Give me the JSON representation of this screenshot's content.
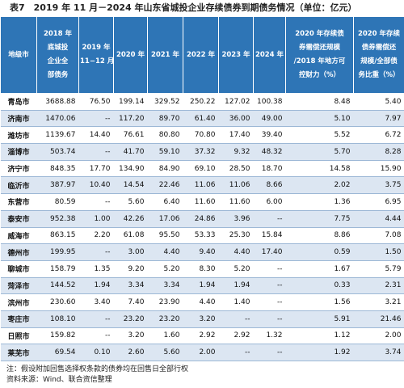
{
  "title": "表7　2019 年 11 月－2024 年山东省城投企业存续债券到期债务情况（单位：亿元）",
  "table": {
    "header": [
      [
        "地级市"
      ],
      [
        "2018 年",
        "底城投",
        "企业全",
        "部债务"
      ],
      [
        "2019 年",
        "11−12 月"
      ],
      [
        "2020 年"
      ],
      [
        "2021 年"
      ],
      [
        "2022 年"
      ],
      [
        "2023 年"
      ],
      [
        "2024 年"
      ],
      [
        "2020 年存续债",
        "券需偿还规模",
        "/2018 年地方可",
        "控财力（%）"
      ],
      [
        "2020 年存续",
        "债券需偿还",
        "规模/全部债",
        "务比重（%）"
      ]
    ],
    "rows": [
      [
        "青岛市",
        "3688.88",
        "76.50",
        "199.14",
        "329.52",
        "250.22",
        "127.02",
        "100.38",
        "8.48",
        "5.40"
      ],
      [
        "济南市",
        "1470.06",
        "--",
        "117.20",
        "89.70",
        "61.40",
        "36.00",
        "49.00",
        "5.10",
        "7.97"
      ],
      [
        "潍坊市",
        "1139.67",
        "14.40",
        "76.61",
        "80.80",
        "70.80",
        "17.40",
        "39.40",
        "5.52",
        "6.72"
      ],
      [
        "淄博市",
        "503.74",
        "--",
        "41.70",
        "59.10",
        "37.32",
        "9.32",
        "48.32",
        "5.70",
        "8.28"
      ],
      [
        "济宁市",
        "848.35",
        "17.70",
        "134.90",
        "84.90",
        "69.10",
        "28.50",
        "18.70",
        "14.58",
        "15.90"
      ],
      [
        "临沂市",
        "387.97",
        "10.40",
        "14.54",
        "22.46",
        "11.06",
        "11.06",
        "8.66",
        "2.02",
        "3.75"
      ],
      [
        "东营市",
        "80.59",
        "--",
        "5.60",
        "6.40",
        "11.60",
        "11.60",
        "6.00",
        "1.36",
        "6.95"
      ],
      [
        "泰安市",
        "952.38",
        "1.00",
        "42.26",
        "17.06",
        "24.86",
        "3.96",
        "--",
        "7.75",
        "4.44"
      ],
      [
        "威海市",
        "863.15",
        "2.20",
        "61.08",
        "95.50",
        "53.33",
        "25.30",
        "15.84",
        "8.86",
        "7.08"
      ],
      [
        "德州市",
        "199.95",
        "--",
        "3.00",
        "4.40",
        "9.40",
        "4.40",
        "17.40",
        "0.59",
        "1.50"
      ],
      [
        "聊城市",
        "158.79",
        "1.35",
        "9.20",
        "5.20",
        "8.30",
        "5.20",
        "--",
        "1.67",
        "5.79"
      ],
      [
        "菏泽市",
        "144.52",
        "1.94",
        "3.34",
        "3.34",
        "1.94",
        "1.94",
        "--",
        "0.33",
        "2.31"
      ],
      [
        "滨州市",
        "230.60",
        "3.40",
        "7.40",
        "23.90",
        "4.40",
        "1.40",
        "--",
        "1.56",
        "3.21"
      ],
      [
        "枣庄市",
        "108.10",
        "--",
        "23.20",
        "23.20",
        "3.20",
        "--",
        "--",
        "5.91",
        "21.46"
      ],
      [
        "日照市",
        "159.82",
        "--",
        "3.20",
        "1.60",
        "2.92",
        "2.92",
        "1.32",
        "1.12",
        "2.00"
      ],
      [
        "莱芜市",
        "69.54",
        "0.10",
        "2.60",
        "5.60",
        "2.00",
        "--",
        "--",
        "1.92",
        "3.74"
      ]
    ]
  },
  "notes": [
    "注：假设附加回售选择权条款的债券均在回售日全部行权",
    "资料来源：Wind、联合资信整理"
  ]
}
